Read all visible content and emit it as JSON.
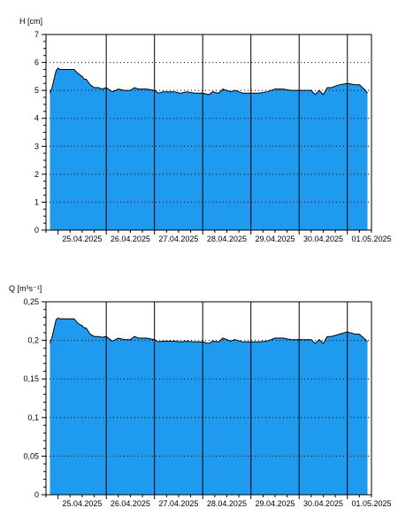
{
  "colors": {
    "fill": "#1e9bef",
    "line": "#000000",
    "grid": "#000000",
    "background": "#ffffff"
  },
  "chart_data": [
    {
      "type": "area",
      "ylabel": "H [cm]",
      "ylim": [
        0,
        7
      ],
      "yticks": [
        "0",
        "1",
        "2",
        "3",
        "4",
        "5",
        "6",
        "7"
      ],
      "xlim": [
        "2025-04-24T18:00",
        "2025-05-01T12:00"
      ],
      "xtick_labels": [
        "25.04.2025",
        "26.04.2025",
        "27.04.2025",
        "28.04.2025",
        "29.04.2025",
        "30.04.2025",
        "01.05.2025"
      ],
      "vertical_grid_days": [
        "2025-04-26",
        "2025-04-27",
        "2025-04-28",
        "2025-04-29",
        "2025-04-30",
        "2025-05-01"
      ],
      "grid": "dotted horizontal, solid vertical at midnight",
      "series": [
        {
          "x": [
            "2025-04-24T20:00",
            "2025-04-24T21:00",
            "2025-04-24T23:00",
            "2025-04-25T00:00",
            "2025-04-25T01:00",
            "2025-04-25T04:00",
            "2025-04-25T08:00",
            "2025-04-25T10:00",
            "2025-04-25T12:00",
            "2025-04-25T13:00",
            "2025-04-25T14:00",
            "2025-04-25T16:00",
            "2025-04-25T18:00",
            "2025-04-25T20:00",
            "2025-04-25T22:00",
            "2025-04-26T00:00",
            "2025-04-26T03:00",
            "2025-04-26T06:00",
            "2025-04-26T09:00",
            "2025-04-26T12:00",
            "2025-04-26T14:00",
            "2025-04-26T16:00",
            "2025-04-26T20:00",
            "2025-04-27T00:00",
            "2025-04-27T02:00",
            "2025-04-27T04:00",
            "2025-04-27T06:00",
            "2025-04-27T10:00",
            "2025-04-27T13:00",
            "2025-04-27T16:00",
            "2025-04-27T20:00",
            "2025-04-28T00:00",
            "2025-04-28T03:00",
            "2025-04-28T05:00",
            "2025-04-28T08:00",
            "2025-04-28T10:00",
            "2025-04-28T14:00",
            "2025-04-28T16:00",
            "2025-04-28T20:00",
            "2025-04-29T00:00",
            "2025-04-29T04:00",
            "2025-04-29T08:00",
            "2025-04-29T12:00",
            "2025-04-29T16:00",
            "2025-04-29T20:00",
            "2025-04-30T00:00",
            "2025-04-30T06:00",
            "2025-04-30T08:00",
            "2025-04-30T10:00",
            "2025-04-30T12:00",
            "2025-04-30T14:00",
            "2025-04-30T16:00",
            "2025-04-30T20:00",
            "2025-05-01T00:00",
            "2025-05-01T04:00",
            "2025-05-01T06:00",
            "2025-05-01T09:00",
            "2025-05-01T10:00"
          ],
          "y": [
            4.9,
            5.1,
            5.7,
            5.8,
            5.75,
            5.75,
            5.75,
            5.6,
            5.5,
            5.4,
            5.4,
            5.2,
            5.1,
            5.1,
            5.05,
            5.1,
            4.95,
            5.05,
            5.0,
            5.0,
            5.1,
            5.05,
            5.05,
            5.0,
            4.9,
            4.95,
            4.95,
            4.95,
            4.9,
            4.95,
            4.9,
            4.9,
            4.85,
            4.95,
            4.9,
            5.05,
            4.95,
            5.0,
            4.9,
            4.9,
            4.9,
            4.95,
            5.05,
            5.05,
            5.0,
            5.0,
            5.0,
            4.85,
            5.0,
            4.85,
            5.1,
            5.1,
            5.2,
            5.25,
            5.2,
            5.2,
            5.0,
            4.9
          ]
        }
      ]
    },
    {
      "type": "area",
      "ylabel": "Q [m³s⁻¹]",
      "ylim": [
        0,
        0.25
      ],
      "yticks": [
        "0",
        "0,05",
        "0,1",
        "0,15",
        "0,2",
        "0,25"
      ],
      "xlim": [
        "2025-04-24T18:00",
        "2025-05-01T12:00"
      ],
      "xtick_labels": [
        "25.04.2025",
        "26.04.2025",
        "27.04.2025",
        "28.04.2025",
        "29.04.2025",
        "30.04.2025",
        "01.05.2025"
      ],
      "vertical_grid_days": [
        "2025-04-26",
        "2025-04-27",
        "2025-04-28",
        "2025-04-29",
        "2025-04-30",
        "2025-05-01"
      ],
      "grid": "dotted horizontal, solid vertical at midnight",
      "series": [
        {
          "x": [
            "2025-04-24T20:00",
            "2025-04-24T21:00",
            "2025-04-24T23:00",
            "2025-04-25T00:00",
            "2025-04-25T01:00",
            "2025-04-25T04:00",
            "2025-04-25T08:00",
            "2025-04-25T10:00",
            "2025-04-25T12:00",
            "2025-04-25T13:00",
            "2025-04-25T14:00",
            "2025-04-25T16:00",
            "2025-04-25T18:00",
            "2025-04-25T20:00",
            "2025-04-25T22:00",
            "2025-04-26T00:00",
            "2025-04-26T03:00",
            "2025-04-26T06:00",
            "2025-04-26T09:00",
            "2025-04-26T12:00",
            "2025-04-26T14:00",
            "2025-04-26T16:00",
            "2025-04-26T20:00",
            "2025-04-27T00:00",
            "2025-04-27T02:00",
            "2025-04-27T04:00",
            "2025-04-27T06:00",
            "2025-04-27T10:00",
            "2025-04-27T13:00",
            "2025-04-27T16:00",
            "2025-04-27T20:00",
            "2025-04-28T00:00",
            "2025-04-28T03:00",
            "2025-04-28T05:00",
            "2025-04-28T08:00",
            "2025-04-28T10:00",
            "2025-04-28T14:00",
            "2025-04-28T16:00",
            "2025-04-28T20:00",
            "2025-04-29T00:00",
            "2025-04-29T04:00",
            "2025-04-29T08:00",
            "2025-04-29T12:00",
            "2025-04-29T16:00",
            "2025-04-29T20:00",
            "2025-04-30T00:00",
            "2025-04-30T06:00",
            "2025-04-30T08:00",
            "2025-04-30T10:00",
            "2025-04-30T12:00",
            "2025-04-30T14:00",
            "2025-04-30T16:00",
            "2025-04-30T20:00",
            "2025-05-01T00:00",
            "2025-05-01T04:00",
            "2025-05-01T06:00",
            "2025-05-01T09:00",
            "2025-05-01T10:00"
          ],
          "y": [
            0.196,
            0.204,
            0.227,
            0.229,
            0.228,
            0.228,
            0.228,
            0.222,
            0.219,
            0.216,
            0.216,
            0.208,
            0.205,
            0.205,
            0.204,
            0.205,
            0.199,
            0.203,
            0.201,
            0.201,
            0.205,
            0.203,
            0.203,
            0.201,
            0.198,
            0.199,
            0.199,
            0.199,
            0.198,
            0.199,
            0.198,
            0.198,
            0.196,
            0.199,
            0.198,
            0.203,
            0.199,
            0.201,
            0.198,
            0.198,
            0.198,
            0.199,
            0.203,
            0.203,
            0.201,
            0.201,
            0.201,
            0.196,
            0.201,
            0.196,
            0.205,
            0.205,
            0.208,
            0.211,
            0.208,
            0.208,
            0.201,
            0.198
          ]
        }
      ]
    }
  ]
}
